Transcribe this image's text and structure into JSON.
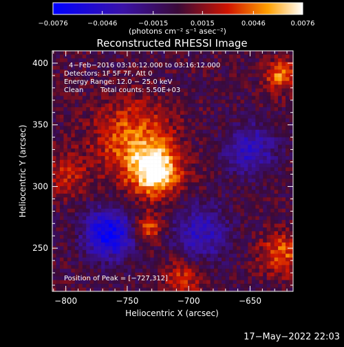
{
  "colorbar": {
    "ticks": [
      {
        "value": -0.0076,
        "label": "−0.0076"
      },
      {
        "value": -0.0046,
        "label": "−0.0046"
      },
      {
        "value": -0.0015,
        "label": "−0.0015"
      },
      {
        "value": 0.0015,
        "label": "0.0015"
      },
      {
        "value": 0.0046,
        "label": "0.0046"
      },
      {
        "value": 0.0076,
        "label": "0.0076"
      }
    ],
    "range": [
      -0.0076,
      0.0076
    ],
    "units_label": "(photons cm⁻² s⁻¹ asec⁻²)"
  },
  "chart_data": {
    "type": "heatmap",
    "title": "Reconstructed RHESSI Image",
    "xlabel": "Heliocentric X (arcsec)",
    "ylabel": "Heliocentric Y (arcsec)",
    "xlim": [
      -811,
      -615
    ],
    "ylim": [
      215,
      410
    ],
    "xticks": [
      -800,
      -750,
      -700,
      -650
    ],
    "yticks": [
      250,
      300,
      350,
      400
    ],
    "xtick_labels": [
      "−800",
      "−750",
      "−700",
      "−650"
    ],
    "ytick_labels": [
      "250",
      "300",
      "350",
      "400"
    ],
    "peak": [
      -727,
      312
    ],
    "value_range": [
      -0.0076,
      0.0076
    ],
    "sources": [
      {
        "x": -727,
        "y": 312,
        "amplitude": 0.0076,
        "width": 14
      },
      {
        "x": -745,
        "y": 338,
        "amplitude": 0.0045,
        "width": 22
      },
      {
        "x": -733,
        "y": 266,
        "amplitude": 0.0042,
        "width": 8
      },
      {
        "x": -765,
        "y": 262,
        "amplitude": -0.0072,
        "width": 14
      },
      {
        "x": -690,
        "y": 262,
        "amplitude": -0.0042,
        "width": 16
      },
      {
        "x": -650,
        "y": 330,
        "amplitude": -0.0045,
        "width": 14
      },
      {
        "x": -625,
        "y": 390,
        "amplitude": 0.0048,
        "width": 9
      },
      {
        "x": -625,
        "y": 245,
        "amplitude": 0.0042,
        "width": 12
      },
      {
        "x": -800,
        "y": 310,
        "amplitude": 0.0028,
        "width": 12
      },
      {
        "x": -705,
        "y": 225,
        "amplitude": 0.0032,
        "width": 12
      }
    ]
  },
  "annotations": {
    "time_range": "4−Feb−2016 03:10:12.000 to 03:16:12.000",
    "detectors": "Detectors: 1F 5F 7F, Att 0",
    "energy_range": "Energy Range: 12.0 − 25.0 keV",
    "clean": "Clean",
    "total_counts": "Total counts: 5.50E+03",
    "peak_position": "Position of Peak = [−727,312]"
  },
  "footer_timestamp": "17−May−2022 22:03"
}
